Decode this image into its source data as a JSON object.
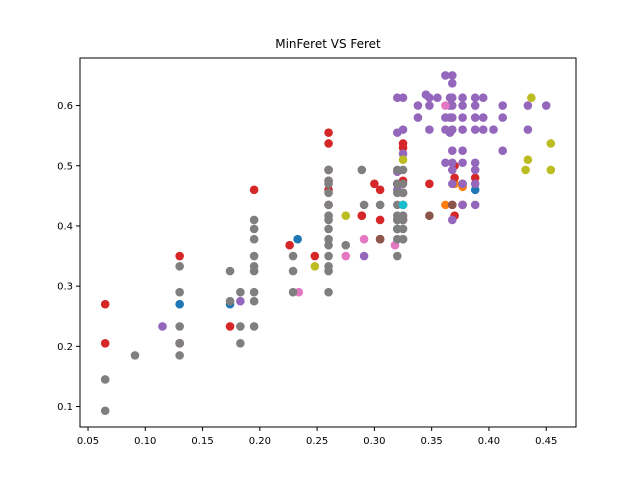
{
  "chart_data": {
    "type": "scatter",
    "title": "MinFeret VS Feret",
    "xlabel": "",
    "ylabel": "",
    "xlim": [
      0.043,
      0.476
    ],
    "ylim": [
      0.066,
      0.679
    ],
    "xticks": [
      0.05,
      0.1,
      0.15,
      0.2,
      0.25,
      0.3,
      0.35,
      0.4,
      0.45
    ],
    "xtick_labels": [
      "0.05",
      "0.10",
      "0.15",
      "0.20",
      "0.25",
      "0.30",
      "0.35",
      "0.40",
      "0.45"
    ],
    "yticks": [
      0.1,
      0.2,
      0.3,
      0.4,
      0.5,
      0.6
    ],
    "ytick_labels": [
      "0.1",
      "0.2",
      "0.3",
      "0.4",
      "0.5",
      "0.6"
    ],
    "grid": false,
    "series": [
      {
        "color": "#1f77b4",
        "points": [
          [
            0.13,
            0.27
          ],
          [
            0.174,
            0.27
          ],
          [
            0.233,
            0.378
          ],
          [
            0.32,
            0.395
          ],
          [
            0.388,
            0.46
          ]
        ]
      },
      {
        "color": "#ff7f0e",
        "points": [
          [
            0.289,
            0.417
          ],
          [
            0.362,
            0.435
          ],
          [
            0.37,
            0.47
          ],
          [
            0.377,
            0.465
          ]
        ]
      },
      {
        "color": "#2ca02c",
        "points": [
          [
            0.32,
            0.41
          ]
        ]
      },
      {
        "color": "#d62728",
        "points": [
          [
            0.065,
            0.27
          ],
          [
            0.065,
            0.205
          ],
          [
            0.13,
            0.35
          ],
          [
            0.13,
            0.205
          ],
          [
            0.174,
            0.233
          ],
          [
            0.195,
            0.46
          ],
          [
            0.226,
            0.368
          ],
          [
            0.248,
            0.35
          ],
          [
            0.26,
            0.555
          ],
          [
            0.26,
            0.537
          ],
          [
            0.26,
            0.493
          ],
          [
            0.26,
            0.475
          ],
          [
            0.26,
            0.46
          ],
          [
            0.26,
            0.435
          ],
          [
            0.289,
            0.417
          ],
          [
            0.3,
            0.47
          ],
          [
            0.305,
            0.46
          ],
          [
            0.305,
            0.41
          ],
          [
            0.305,
            0.378
          ],
          [
            0.32,
            0.47
          ],
          [
            0.325,
            0.537
          ],
          [
            0.325,
            0.53
          ],
          [
            0.325,
            0.475
          ],
          [
            0.325,
            0.455
          ],
          [
            0.325,
            0.435
          ],
          [
            0.325,
            0.41
          ],
          [
            0.348,
            0.47
          ],
          [
            0.37,
            0.5
          ],
          [
            0.37,
            0.48
          ],
          [
            0.37,
            0.417
          ],
          [
            0.377,
            0.47
          ],
          [
            0.377,
            0.435
          ],
          [
            0.388,
            0.48
          ]
        ]
      },
      {
        "color": "#9467bd",
        "points": [
          [
            0.115,
            0.233
          ],
          [
            0.183,
            0.275
          ],
          [
            0.291,
            0.35
          ],
          [
            0.32,
            0.46
          ],
          [
            0.32,
            0.47
          ],
          [
            0.32,
            0.49
          ],
          [
            0.32,
            0.555
          ],
          [
            0.32,
            0.613
          ],
          [
            0.325,
            0.52
          ],
          [
            0.325,
            0.56
          ],
          [
            0.325,
            0.613
          ],
          [
            0.338,
            0.58
          ],
          [
            0.338,
            0.6
          ],
          [
            0.345,
            0.618
          ],
          [
            0.348,
            0.56
          ],
          [
            0.348,
            0.6
          ],
          [
            0.348,
            0.613
          ],
          [
            0.355,
            0.613
          ],
          [
            0.362,
            0.65
          ],
          [
            0.362,
            0.58
          ],
          [
            0.362,
            0.56
          ],
          [
            0.362,
            0.505
          ],
          [
            0.366,
            0.6
          ],
          [
            0.366,
            0.613
          ],
          [
            0.366,
            0.58
          ],
          [
            0.366,
            0.555
          ],
          [
            0.368,
            0.65
          ],
          [
            0.368,
            0.637
          ],
          [
            0.368,
            0.613
          ],
          [
            0.368,
            0.6
          ],
          [
            0.368,
            0.58
          ],
          [
            0.368,
            0.56
          ],
          [
            0.368,
            0.525
          ],
          [
            0.368,
            0.505
          ],
          [
            0.368,
            0.493
          ],
          [
            0.368,
            0.47
          ],
          [
            0.368,
            0.435
          ],
          [
            0.368,
            0.41
          ],
          [
            0.377,
            0.613
          ],
          [
            0.377,
            0.6
          ],
          [
            0.377,
            0.58
          ],
          [
            0.377,
            0.56
          ],
          [
            0.377,
            0.525
          ],
          [
            0.377,
            0.505
          ],
          [
            0.377,
            0.47
          ],
          [
            0.377,
            0.435
          ],
          [
            0.388,
            0.613
          ],
          [
            0.388,
            0.6
          ],
          [
            0.388,
            0.58
          ],
          [
            0.388,
            0.56
          ],
          [
            0.388,
            0.505
          ],
          [
            0.388,
            0.493
          ],
          [
            0.388,
            0.47
          ],
          [
            0.388,
            0.435
          ],
          [
            0.395,
            0.613
          ],
          [
            0.395,
            0.58
          ],
          [
            0.395,
            0.56
          ],
          [
            0.404,
            0.56
          ],
          [
            0.412,
            0.6
          ],
          [
            0.412,
            0.58
          ],
          [
            0.412,
            0.525
          ],
          [
            0.434,
            0.6
          ],
          [
            0.434,
            0.56
          ],
          [
            0.45,
            0.6
          ]
        ]
      },
      {
        "color": "#8c564b",
        "points": [
          [
            0.13,
            0.205
          ],
          [
            0.305,
            0.378
          ],
          [
            0.348,
            0.417
          ],
          [
            0.368,
            0.435
          ]
        ]
      },
      {
        "color": "#e377c2",
        "points": [
          [
            0.234,
            0.29
          ],
          [
            0.275,
            0.35
          ],
          [
            0.291,
            0.378
          ],
          [
            0.318,
            0.368
          ],
          [
            0.325,
            0.378
          ],
          [
            0.325,
            0.417
          ],
          [
            0.362,
            0.6
          ]
        ]
      },
      {
        "color": "#7f7f7f",
        "points": [
          [
            0.065,
            0.145
          ],
          [
            0.065,
            0.093
          ],
          [
            0.091,
            0.185
          ],
          [
            0.13,
            0.333
          ],
          [
            0.13,
            0.29
          ],
          [
            0.13,
            0.233
          ],
          [
            0.13,
            0.205
          ],
          [
            0.13,
            0.185
          ],
          [
            0.174,
            0.325
          ],
          [
            0.174,
            0.275
          ],
          [
            0.183,
            0.29
          ],
          [
            0.183,
            0.233
          ],
          [
            0.183,
            0.205
          ],
          [
            0.195,
            0.41
          ],
          [
            0.195,
            0.395
          ],
          [
            0.195,
            0.378
          ],
          [
            0.195,
            0.35
          ],
          [
            0.195,
            0.333
          ],
          [
            0.195,
            0.325
          ],
          [
            0.195,
            0.29
          ],
          [
            0.195,
            0.275
          ],
          [
            0.195,
            0.233
          ],
          [
            0.229,
            0.35
          ],
          [
            0.229,
            0.325
          ],
          [
            0.229,
            0.29
          ],
          [
            0.26,
            0.493
          ],
          [
            0.26,
            0.475
          ],
          [
            0.26,
            0.47
          ],
          [
            0.26,
            0.455
          ],
          [
            0.26,
            0.435
          ],
          [
            0.26,
            0.417
          ],
          [
            0.26,
            0.41
          ],
          [
            0.26,
            0.395
          ],
          [
            0.26,
            0.378
          ],
          [
            0.26,
            0.368
          ],
          [
            0.26,
            0.35
          ],
          [
            0.26,
            0.333
          ],
          [
            0.26,
            0.325
          ],
          [
            0.26,
            0.29
          ],
          [
            0.275,
            0.368
          ],
          [
            0.289,
            0.493
          ],
          [
            0.291,
            0.435
          ],
          [
            0.305,
            0.435
          ],
          [
            0.32,
            0.493
          ],
          [
            0.32,
            0.47
          ],
          [
            0.32,
            0.455
          ],
          [
            0.32,
            0.435
          ],
          [
            0.32,
            0.417
          ],
          [
            0.32,
            0.41
          ],
          [
            0.32,
            0.395
          ],
          [
            0.32,
            0.378
          ],
          [
            0.32,
            0.35
          ],
          [
            0.325,
            0.493
          ],
          [
            0.325,
            0.47
          ],
          [
            0.325,
            0.455
          ],
          [
            0.325,
            0.435
          ],
          [
            0.325,
            0.417
          ],
          [
            0.325,
            0.41
          ],
          [
            0.325,
            0.395
          ],
          [
            0.325,
            0.378
          ]
        ]
      },
      {
        "color": "#bcbd22",
        "points": [
          [
            0.248,
            0.333
          ],
          [
            0.275,
            0.417
          ],
          [
            0.325,
            0.51
          ],
          [
            0.432,
            0.493
          ],
          [
            0.434,
            0.51
          ],
          [
            0.437,
            0.613
          ],
          [
            0.454,
            0.537
          ],
          [
            0.454,
            0.493
          ]
        ]
      },
      {
        "color": "#17becf",
        "points": [
          [
            0.325,
            0.435
          ]
        ]
      }
    ]
  }
}
